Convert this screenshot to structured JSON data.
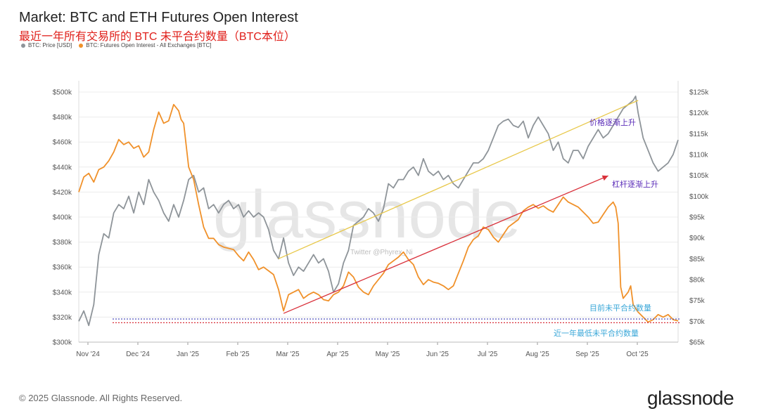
{
  "header": {
    "title": "Market: BTC and ETH Futures Open Interest",
    "subtitle": "最近一年所有交易所的 BTC 未平合约数量（BTC本位）"
  },
  "legend": [
    {
      "label": "BTC: Price [USD]",
      "color": "#8e9499"
    },
    {
      "label": "BTC: Futures Open Interest - All Exchanges [BTC]",
      "color": "#f0912a"
    }
  ],
  "footer": {
    "copyright": "© 2025 Glassnode. All Rights Reserved.",
    "logo": "glassnode"
  },
  "watermark": {
    "brand": "glassnode",
    "credit": "Twitter @Phyrex_Ni"
  },
  "annotations": {
    "price_trend": "价格逐渐上升",
    "leverage_trend": "杠杆逐渐上升",
    "current_oi": "目前未平合约数量",
    "year_low_oi": "近一年最低未平合约数量"
  },
  "colors": {
    "price": "#8e9499",
    "oi": "#f0912a",
    "price_trend": "#e8c84a",
    "leverage_trend": "#d9303a",
    "current_line": "#3b3fb5",
    "low_line": "#d9303a",
    "price_anno": "#5a2bb8",
    "leverage_anno": "#5a2bb8",
    "cyan_anno": "#3aa7d8"
  },
  "chart_data": {
    "type": "line",
    "x_labels": [
      "Nov '24",
      "Dec '24",
      "Jan '25",
      "Feb '25",
      "Mar '25",
      "Apr '25",
      "May '25",
      "Jun '25",
      "Jul '25",
      "Aug '25",
      "Sep '25",
      "Oct '25"
    ],
    "x_range": [
      0,
      12
    ],
    "y_left": {
      "ticks": [
        "$300k",
        "$320k",
        "$340k",
        "$360k",
        "$380k",
        "$400k",
        "$420k",
        "$440k",
        "$460k",
        "$480k",
        "$500k"
      ],
      "range": [
        300000,
        500000
      ]
    },
    "y_right": {
      "ticks": [
        "$65k",
        "$70k",
        "$75k",
        "$80k",
        "$85k",
        "$90k",
        "$95k",
        "$100k",
        "$105k",
        "$110k",
        "$115k",
        "$120k",
        "$125k"
      ],
      "range": [
        65000,
        125000
      ]
    },
    "series": [
      {
        "name": "BTC: Price [USD]",
        "axis": "right",
        "points": [
          [
            0,
            70000
          ],
          [
            0.1,
            72500
          ],
          [
            0.2,
            69000
          ],
          [
            0.3,
            74000
          ],
          [
            0.4,
            86000
          ],
          [
            0.5,
            91000
          ],
          [
            0.6,
            90000
          ],
          [
            0.7,
            96000
          ],
          [
            0.8,
            98000
          ],
          [
            0.9,
            97000
          ],
          [
            1,
            100000
          ],
          [
            1.1,
            96000
          ],
          [
            1.2,
            101000
          ],
          [
            1.3,
            98000
          ],
          [
            1.4,
            104000
          ],
          [
            1.5,
            101000
          ],
          [
            1.6,
            99000
          ],
          [
            1.7,
            96000
          ],
          [
            1.8,
            94000
          ],
          [
            1.9,
            98000
          ],
          [
            2,
            95000
          ],
          [
            2.1,
            99000
          ],
          [
            2.2,
            104000
          ],
          [
            2.3,
            105000
          ],
          [
            2.4,
            101000
          ],
          [
            2.5,
            102000
          ],
          [
            2.6,
            97000
          ],
          [
            2.7,
            98000
          ],
          [
            2.8,
            96000
          ],
          [
            2.9,
            98000
          ],
          [
            3,
            99000
          ],
          [
            3.1,
            97000
          ],
          [
            3.2,
            98000
          ],
          [
            3.3,
            95000
          ],
          [
            3.4,
            96500
          ],
          [
            3.5,
            95000
          ],
          [
            3.6,
            96000
          ],
          [
            3.7,
            95000
          ],
          [
            3.8,
            92000
          ],
          [
            3.9,
            87000
          ],
          [
            4,
            85000
          ],
          [
            4.1,
            90000
          ],
          [
            4.2,
            84000
          ],
          [
            4.3,
            81000
          ],
          [
            4.4,
            83000
          ],
          [
            4.5,
            82000
          ],
          [
            4.6,
            84000
          ],
          [
            4.7,
            86000
          ],
          [
            4.8,
            84000
          ],
          [
            4.9,
            85000
          ],
          [
            5,
            82000
          ],
          [
            5.1,
            77000
          ],
          [
            5.2,
            79000
          ],
          [
            5.3,
            84000
          ],
          [
            5.4,
            87000
          ],
          [
            5.5,
            93000
          ],
          [
            5.6,
            94000
          ],
          [
            5.7,
            95000
          ],
          [
            5.8,
            97000
          ],
          [
            5.9,
            96000
          ],
          [
            6,
            94000
          ],
          [
            6.1,
            97000
          ],
          [
            6.2,
            103000
          ],
          [
            6.3,
            102000
          ],
          [
            6.4,
            104000
          ],
          [
            6.5,
            104000
          ],
          [
            6.6,
            106000
          ],
          [
            6.7,
            107000
          ],
          [
            6.8,
            105000
          ],
          [
            6.9,
            109000
          ],
          [
            7,
            106000
          ],
          [
            7.1,
            105000
          ],
          [
            7.2,
            106000
          ],
          [
            7.3,
            104000
          ],
          [
            7.4,
            105000
          ],
          [
            7.5,
            103000
          ],
          [
            7.6,
            102000
          ],
          [
            7.7,
            104000
          ],
          [
            7.8,
            106000
          ],
          [
            7.9,
            108000
          ],
          [
            8,
            108000
          ],
          [
            8.1,
            109000
          ],
          [
            8.2,
            111000
          ],
          [
            8.3,
            114000
          ],
          [
            8.4,
            117000
          ],
          [
            8.5,
            118000
          ],
          [
            8.6,
            118500
          ],
          [
            8.7,
            117000
          ],
          [
            8.8,
            116500
          ],
          [
            8.9,
            118000
          ],
          [
            9,
            114000
          ],
          [
            9.1,
            117000
          ],
          [
            9.2,
            119000
          ],
          [
            9.3,
            117000
          ],
          [
            9.4,
            115000
          ],
          [
            9.5,
            111000
          ],
          [
            9.6,
            113000
          ],
          [
            9.7,
            109000
          ],
          [
            9.8,
            108000
          ],
          [
            9.9,
            111000
          ],
          [
            10,
            111000
          ],
          [
            10.1,
            109000
          ],
          [
            10.2,
            112000
          ],
          [
            10.3,
            114000
          ],
          [
            10.4,
            116000
          ],
          [
            10.5,
            114000
          ],
          [
            10.6,
            115000
          ],
          [
            10.7,
            117000
          ],
          [
            10.8,
            119000
          ],
          [
            10.9,
            121000
          ],
          [
            11,
            122000
          ],
          [
            11.1,
            123000
          ],
          [
            11.15,
            124000
          ],
          [
            11.2,
            120000
          ],
          [
            11.3,
            114000
          ],
          [
            11.4,
            111000
          ],
          [
            11.5,
            108000
          ],
          [
            11.6,
            106000
          ],
          [
            11.7,
            107000
          ],
          [
            11.8,
            108000
          ],
          [
            11.9,
            110000
          ],
          [
            12,
            113500
          ]
        ]
      },
      {
        "name": "BTC: Futures Open Interest - All Exchanges [BTC]",
        "axis": "left",
        "points": [
          [
            0,
            420000
          ],
          [
            0.1,
            432000
          ],
          [
            0.2,
            435000
          ],
          [
            0.3,
            428000
          ],
          [
            0.4,
            438000
          ],
          [
            0.5,
            440000
          ],
          [
            0.6,
            445000
          ],
          [
            0.7,
            452000
          ],
          [
            0.8,
            462000
          ],
          [
            0.9,
            458000
          ],
          [
            1,
            460000
          ],
          [
            1.1,
            455000
          ],
          [
            1.2,
            457000
          ],
          [
            1.3,
            448000
          ],
          [
            1.4,
            452000
          ],
          [
            1.5,
            470000
          ],
          [
            1.6,
            484000
          ],
          [
            1.7,
            475000
          ],
          [
            1.8,
            477000
          ],
          [
            1.9,
            490000
          ],
          [
            2,
            485000
          ],
          [
            2.05,
            478000
          ],
          [
            2.1,
            475000
          ],
          [
            2.2,
            440000
          ],
          [
            2.3,
            430000
          ],
          [
            2.4,
            410000
          ],
          [
            2.5,
            392000
          ],
          [
            2.6,
            383000
          ],
          [
            2.7,
            383000
          ],
          [
            2.8,
            378000
          ],
          [
            2.9,
            376000
          ],
          [
            3,
            375000
          ],
          [
            3.1,
            374000
          ],
          [
            3.2,
            369000
          ],
          [
            3.3,
            365000
          ],
          [
            3.4,
            372000
          ],
          [
            3.5,
            366000
          ],
          [
            3.6,
            358000
          ],
          [
            3.7,
            360000
          ],
          [
            3.8,
            357000
          ],
          [
            3.9,
            354000
          ],
          [
            4,
            342000
          ],
          [
            4.1,
            325000
          ],
          [
            4.2,
            338000
          ],
          [
            4.3,
            340000
          ],
          [
            4.4,
            342000
          ],
          [
            4.5,
            335000
          ],
          [
            4.6,
            338000
          ],
          [
            4.7,
            340000
          ],
          [
            4.8,
            338000
          ],
          [
            4.9,
            334000
          ],
          [
            5,
            333000
          ],
          [
            5.1,
            338000
          ],
          [
            5.2,
            340000
          ],
          [
            5.3,
            345000
          ],
          [
            5.4,
            356000
          ],
          [
            5.5,
            352000
          ],
          [
            5.6,
            344000
          ],
          [
            5.7,
            340000
          ],
          [
            5.8,
            338000
          ],
          [
            5.9,
            345000
          ],
          [
            6,
            350000
          ],
          [
            6.1,
            355000
          ],
          [
            6.2,
            362000
          ],
          [
            6.3,
            365000
          ],
          [
            6.4,
            368000
          ],
          [
            6.5,
            372000
          ],
          [
            6.6,
            366000
          ],
          [
            6.7,
            362000
          ],
          [
            6.8,
            352000
          ],
          [
            6.9,
            346000
          ],
          [
            7,
            350000
          ],
          [
            7.1,
            348000
          ],
          [
            7.2,
            347000
          ],
          [
            7.3,
            345000
          ],
          [
            7.4,
            342000
          ],
          [
            7.5,
            345000
          ],
          [
            7.6,
            355000
          ],
          [
            7.7,
            365000
          ],
          [
            7.8,
            376000
          ],
          [
            7.9,
            382000
          ],
          [
            8,
            385000
          ],
          [
            8.1,
            392000
          ],
          [
            8.2,
            390000
          ],
          [
            8.3,
            384000
          ],
          [
            8.4,
            380000
          ],
          [
            8.5,
            386000
          ],
          [
            8.6,
            392000
          ],
          [
            8.7,
            395000
          ],
          [
            8.8,
            398000
          ],
          [
            8.9,
            405000
          ],
          [
            9,
            408000
          ],
          [
            9.1,
            410000
          ],
          [
            9.2,
            407000
          ],
          [
            9.3,
            409000
          ],
          [
            9.4,
            406000
          ],
          [
            9.5,
            404000
          ],
          [
            9.6,
            410000
          ],
          [
            9.7,
            416000
          ],
          [
            9.8,
            412000
          ],
          [
            9.9,
            410000
          ],
          [
            10,
            408000
          ],
          [
            10.1,
            404000
          ],
          [
            10.2,
            400000
          ],
          [
            10.3,
            395000
          ],
          [
            10.4,
            396000
          ],
          [
            10.5,
            402000
          ],
          [
            10.6,
            408000
          ],
          [
            10.7,
            412000
          ],
          [
            10.75,
            408000
          ],
          [
            10.8,
            395000
          ],
          [
            10.85,
            344000
          ],
          [
            10.9,
            335000
          ],
          [
            11,
            340000
          ],
          [
            11.05,
            345000
          ],
          [
            11.1,
            330000
          ],
          [
            11.2,
            324000
          ],
          [
            11.3,
            320000
          ],
          [
            11.4,
            316000
          ],
          [
            11.5,
            318000
          ],
          [
            11.6,
            322000
          ],
          [
            11.7,
            320000
          ],
          [
            11.8,
            322000
          ],
          [
            11.9,
            318000
          ],
          [
            12,
            317000
          ]
        ]
      }
    ],
    "reference_lines": [
      {
        "label": "目前未平合约数量",
        "axis": "left",
        "value": 318500,
        "style": "dotted"
      },
      {
        "label": "近一年最低未平合约数量",
        "axis": "left",
        "value": 315500,
        "style": "dotted"
      }
    ],
    "trend_lines": [
      {
        "label": "价格逐渐上升",
        "axis": "right",
        "from": [
          4,
          85000
        ],
        "to": [
          11.2,
          123000
        ]
      },
      {
        "label": "杠杆逐渐上升",
        "axis": "left",
        "from": [
          4.1,
          323000
        ],
        "to": [
          10.6,
          433000
        ]
      }
    ]
  }
}
